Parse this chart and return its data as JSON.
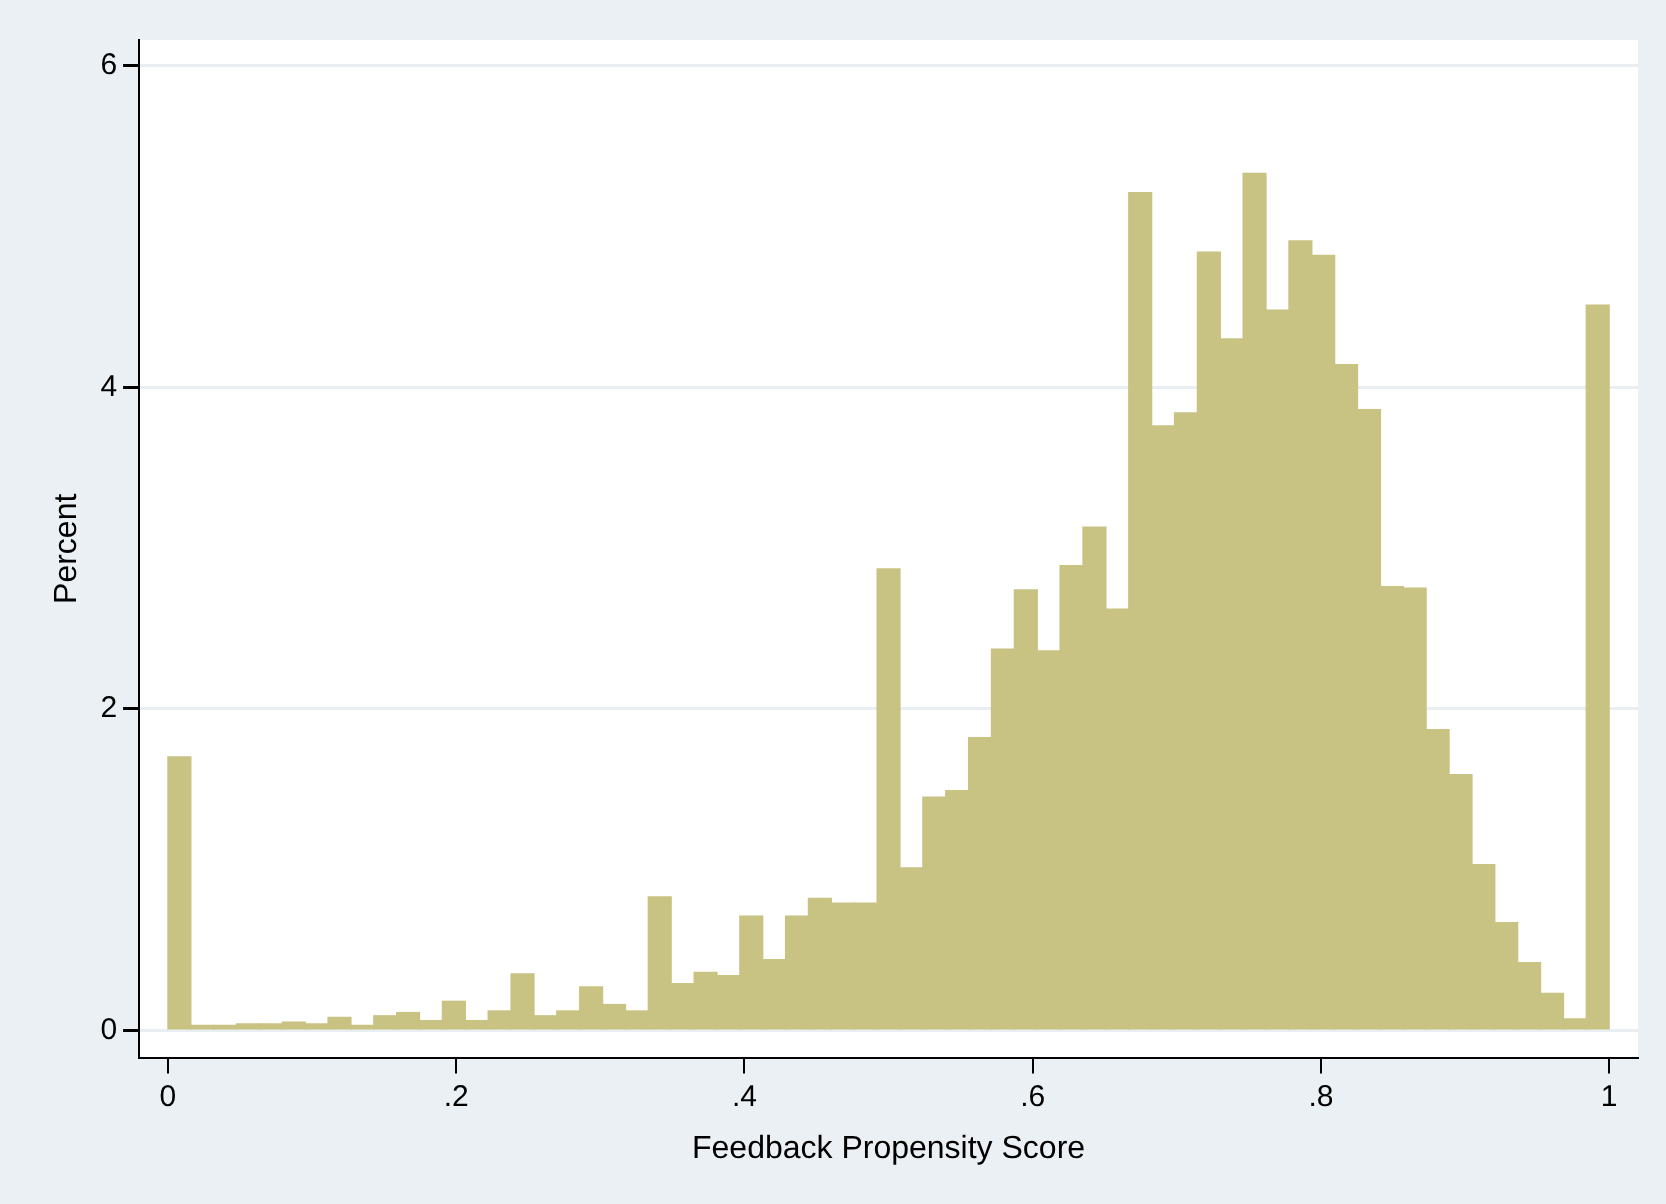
{
  "chart_data": {
    "type": "histogram",
    "xlabel": "Feedback Propensity Score",
    "ylabel": "Percent",
    "color": "#c8c283",
    "bins": [
      0,
      0.0159,
      0.0317,
      0.0476,
      0.0635,
      0.0794,
      0.0952,
      0.1111,
      0.127,
      0.1429,
      0.1587,
      0.1746,
      0.1905,
      0.2063,
      0.2222,
      0.2381,
      0.254,
      0.2698,
      0.2857,
      0.3016,
      0.3175,
      0.3333,
      0.3492,
      0.3651,
      0.381,
      0.3968,
      0.4127,
      0.4286,
      0.4444,
      0.4603,
      0.4762,
      0.4921,
      0.5079,
      0.5238,
      0.5397,
      0.5556,
      0.5714,
      0.5873,
      0.6032,
      0.619,
      0.6349,
      0.6508,
      0.6667,
      0.6825,
      0.6984,
      0.7143,
      0.7302,
      0.746,
      0.7619,
      0.7778,
      0.7937,
      0.8095,
      0.8254,
      0.8413,
      0.8571,
      0.873,
      0.8889,
      0.9048,
      0.9206,
      0.9365,
      0.9524,
      0.9683,
      0.9841,
      1
    ],
    "values": [
      1.7,
      0.03,
      0.03,
      0.04,
      0.04,
      0.05,
      0.04,
      0.08,
      0.03,
      0.09,
      0.11,
      0.06,
      0.18,
      0.06,
      0.12,
      0.35,
      0.09,
      0.12,
      0.27,
      0.16,
      0.12,
      0.83,
      0.29,
      0.36,
      0.34,
      0.71,
      0.44,
      0.71,
      0.82,
      0.79,
      0.79,
      2.87,
      1.01,
      1.45,
      1.49,
      1.82,
      2.37,
      2.74,
      2.36,
      2.89,
      3.13,
      2.62,
      5.21,
      3.76,
      3.84,
      4.84,
      4.3,
      5.33,
      4.48,
      4.91,
      4.82,
      4.14,
      3.86,
      2.76,
      2.75,
      1.87,
      1.59,
      1.03,
      0.67,
      0.42,
      0.23,
      0.07,
      4.51
    ],
    "xlim": [
      -0.02,
      1.02
    ],
    "ylim": [
      -0.17,
      6.16
    ],
    "xticks": [
      0,
      {
        "value": 0.2,
        "label": ".2"
      },
      {
        "value": 0.4,
        "label": ".4"
      },
      {
        "value": 0.6,
        "label": ".6"
      },
      {
        "value": 0.8,
        "label": ".8"
      },
      1
    ],
    "yticks": [
      0,
      2,
      4,
      6
    ],
    "grid": "y",
    "legend": false
  }
}
